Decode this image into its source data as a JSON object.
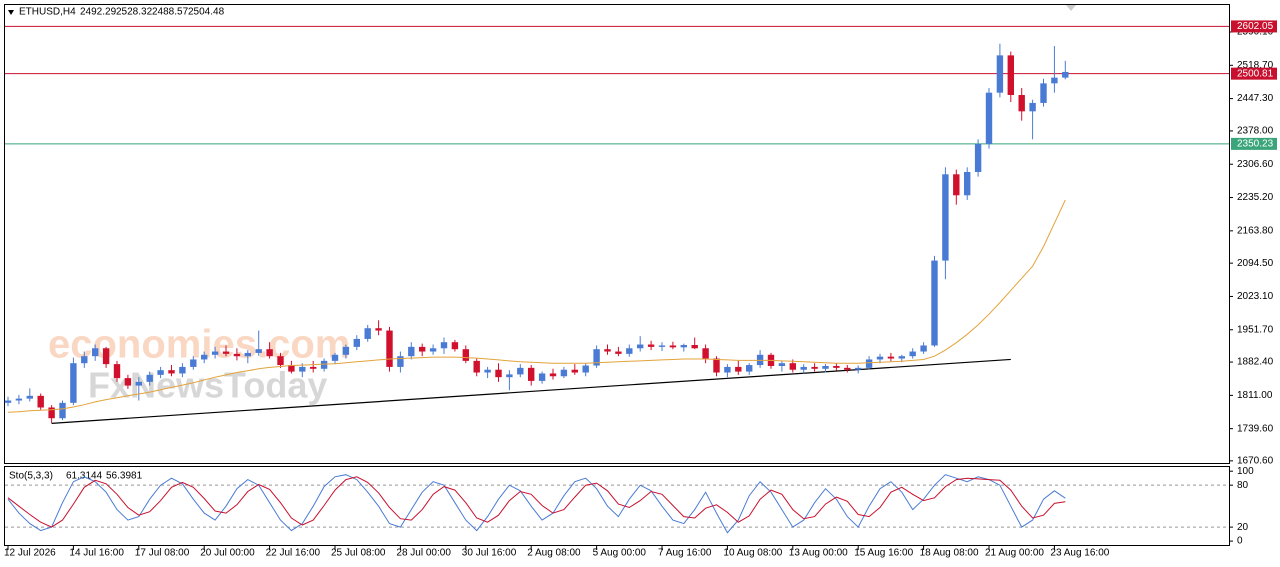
{
  "chart_data": [
    {
      "type": "candlestick",
      "title": "ETHUSD,H4",
      "watermark": [
        "economies.com",
        "FxNewsToday"
      ],
      "categories": [
        "12 Jul 2026",
        null,
        null,
        null,
        null,
        null,
        "14 Jul 16:00",
        null,
        null,
        null,
        null,
        null,
        "17 Jul 08:00",
        null,
        null,
        null,
        null,
        null,
        "20 Jul 00:00",
        null,
        null,
        null,
        null,
        null,
        "22 Jul 16:00",
        null,
        null,
        null,
        null,
        null,
        "25 Jul 08:00",
        null,
        null,
        null,
        null,
        null,
        "28 Jul 00:00",
        null,
        null,
        null,
        null,
        null,
        "30 Jul 16:00",
        null,
        null,
        null,
        null,
        null,
        "2 Aug 08:00",
        null,
        null,
        null,
        null,
        null,
        "5 Aug 00:00",
        null,
        null,
        null,
        null,
        null,
        "7 Aug 16:00",
        null,
        null,
        null,
        null,
        null,
        "10 Aug 08:00",
        null,
        null,
        null,
        null,
        null,
        "13 Aug 00:00",
        null,
        null,
        null,
        null,
        null,
        "15 Aug 16:00",
        null,
        null,
        null,
        null,
        null,
        "18 Aug 08:00",
        null,
        null,
        null,
        null,
        null,
        "21 Aug 00:00",
        null,
        null,
        null,
        null,
        null,
        "23 Aug 16:00",
        null
      ],
      "open": [
        1795,
        1800,
        1804,
        1810,
        1785,
        1762,
        1795,
        1880,
        1895,
        1912,
        1878,
        1848,
        1832,
        1840,
        1855,
        1865,
        1858,
        1872,
        1888,
        1898,
        1905,
        1900,
        1895,
        1902,
        1910,
        1895,
        1876,
        1862,
        1872,
        1868,
        1885,
        1898,
        1915,
        1932,
        1955,
        1950,
        1872,
        1895,
        1915,
        1905,
        1912,
        1925,
        1910,
        1885,
        1860,
        1866,
        1850,
        1856,
        1870,
        1842,
        1858,
        1852,
        1866,
        1860,
        1875,
        1910,
        1905,
        1900,
        1912,
        1920,
        1915,
        1918,
        1914,
        1919,
        1912,
        1890,
        1860,
        1872,
        1862,
        1876,
        1898,
        1874,
        1880,
        1866,
        1872,
        1868,
        1874,
        1870,
        1866,
        1870,
        1888,
        1894,
        1890,
        1895,
        1905,
        1918,
        2100,
        2285,
        2240,
        2290,
        2350,
        2460,
        2540,
        2455,
        2420,
        2438,
        2480,
        2492.29
      ],
      "high": [
        1808,
        1812,
        1826,
        1815,
        1790,
        1800,
        1892,
        1905,
        1920,
        1915,
        1885,
        1855,
        1850,
        1862,
        1872,
        1876,
        1880,
        1895,
        1905,
        1915,
        1918,
        1912,
        1908,
        1950,
        1925,
        1902,
        1885,
        1880,
        1885,
        1890,
        1902,
        1920,
        1940,
        1962,
        1972,
        1958,
        1905,
        1925,
        1922,
        1920,
        1935,
        1930,
        1918,
        1890,
        1872,
        1880,
        1865,
        1878,
        1876,
        1862,
        1868,
        1872,
        1878,
        1880,
        1918,
        1920,
        1915,
        1920,
        1938,
        1928,
        1925,
        1926,
        1922,
        1935,
        1920,
        1895,
        1878,
        1885,
        1880,
        1908,
        1902,
        1885,
        1888,
        1878,
        1880,
        1878,
        1880,
        1876,
        1875,
        1895,
        1900,
        1902,
        1898,
        1912,
        1925,
        2110,
        2300,
        2295,
        2300,
        2360,
        2470,
        2565,
        2548,
        2470,
        2445,
        2490,
        2560,
        2528.32
      ],
      "low": [
        1788,
        1792,
        1798,
        1780,
        1752,
        1758,
        1790,
        1870,
        1885,
        1870,
        1840,
        1825,
        1800,
        1832,
        1848,
        1852,
        1850,
        1866,
        1880,
        1890,
        1895,
        1886,
        1880,
        1896,
        1890,
        1870,
        1858,
        1850,
        1860,
        1862,
        1878,
        1890,
        1908,
        1926,
        1940,
        1862,
        1860,
        1888,
        1895,
        1898,
        1900,
        1905,
        1880,
        1852,
        1848,
        1840,
        1822,
        1850,
        1832,
        1836,
        1845,
        1848,
        1855,
        1852,
        1870,
        1898,
        1895,
        1894,
        1905,
        1908,
        1906,
        1910,
        1905,
        1910,
        1880,
        1852,
        1850,
        1855,
        1855,
        1870,
        1868,
        1862,
        1860,
        1858,
        1862,
        1860,
        1864,
        1860,
        1858,
        1866,
        1880,
        1884,
        1882,
        1890,
        1900,
        1915,
        2060,
        2220,
        2230,
        2280,
        2340,
        2450,
        2440,
        2400,
        2360,
        2430,
        2460,
        2488.57
      ],
      "close": [
        1800,
        1804,
        1810,
        1785,
        1762,
        1795,
        1880,
        1895,
        1912,
        1878,
        1848,
        1832,
        1840,
        1855,
        1865,
        1858,
        1872,
        1888,
        1898,
        1905,
        1900,
        1895,
        1902,
        1910,
        1895,
        1876,
        1862,
        1872,
        1868,
        1885,
        1898,
        1915,
        1932,
        1955,
        1950,
        1872,
        1895,
        1915,
        1905,
        1912,
        1925,
        1910,
        1885,
        1860,
        1866,
        1850,
        1856,
        1870,
        1842,
        1858,
        1852,
        1866,
        1860,
        1875,
        1910,
        1905,
        1900,
        1912,
        1920,
        1915,
        1918,
        1914,
        1919,
        1912,
        1890,
        1860,
        1872,
        1862,
        1876,
        1898,
        1874,
        1880,
        1866,
        1872,
        1868,
        1874,
        1870,
        1866,
        1870,
        1888,
        1894,
        1890,
        1895,
        1905,
        1918,
        2100,
        2285,
        2240,
        2290,
        2350,
        2460,
        2540,
        2455,
        2420,
        2438,
        2480,
        2492.29,
        2504.48
      ],
      "up_color": "#4a7bd4",
      "down_color": "#d0102c",
      "ma": {
        "color": "#e3a33b",
        "values": [
          1775,
          1776,
          1778,
          1779,
          1780,
          1782,
          1786,
          1791,
          1797,
          1802,
          1806,
          1810,
          1814,
          1818,
          1823,
          1828,
          1833,
          1838,
          1844,
          1850,
          1855,
          1860,
          1864,
          1868,
          1871,
          1873,
          1875,
          1876,
          1877,
          1878,
          1879,
          1881,
          1883,
          1885,
          1887,
          1889,
          1890,
          1891,
          1892,
          1893,
          1893,
          1893,
          1892,
          1891,
          1889,
          1887,
          1885,
          1883,
          1882,
          1881,
          1880,
          1880,
          1880,
          1880,
          1881,
          1882,
          1883,
          1884,
          1885,
          1886,
          1887,
          1888,
          1889,
          1889,
          1889,
          1888,
          1887,
          1886,
          1886,
          1886,
          1886,
          1885,
          1884,
          1883,
          1882,
          1881,
          1880,
          1880,
          1880,
          1881,
          1882,
          1883,
          1884,
          1886,
          1888,
          1895,
          1908,
          1924,
          1942,
          1962,
          1985,
          2010,
          2036,
          2062,
          2088,
          2130,
          2180,
          2230
        ]
      },
      "hlines": [
        {
          "value": 2602.05,
          "color": "#c8102e"
        },
        {
          "value": 2500.81,
          "color": "#c8102e"
        },
        {
          "value": 2350.23,
          "color": "#3aa57a"
        }
      ],
      "trendline": {
        "x": [
          4,
          92
        ],
        "y": [
          1751,
          1888
        ]
      },
      "ylim": [
        1666,
        2648
      ],
      "yticks": [
        {
          "value": 2590.1,
          "label": "2590.10"
        },
        {
          "value": 2518.7,
          "label": "2518.70"
        },
        {
          "value": 2447.3,
          "label": "2447.30"
        },
        {
          "value": 2378,
          "label": "2378.00"
        },
        {
          "value": 2306.6,
          "label": "2306.60"
        },
        {
          "value": 2235.2,
          "label": "2235.20"
        },
        {
          "value": 2163.8,
          "label": "2163.80"
        },
        {
          "value": 2094.5,
          "label": "2094.50"
        },
        {
          "value": 2023.1,
          "label": "2023.10"
        },
        {
          "value": 1951.7,
          "label": "1951.70"
        },
        {
          "value": 1882.4,
          "label": "1882.40"
        },
        {
          "value": 1811,
          "label": "1811.00"
        },
        {
          "value": 1739.6,
          "label": "1739.60"
        },
        {
          "value": 1670.6,
          "label": "1670.60"
        }
      ]
    },
    {
      "type": "line",
      "title": "Sto(5,3,3)",
      "series": [
        {
          "color": "#4a7bd4",
          "values": [
            60,
            40,
            25,
            15,
            20,
            55,
            85,
            92,
            85,
            70,
            45,
            30,
            35,
            60,
            80,
            90,
            82,
            60,
            40,
            30,
            50,
            75,
            88,
            80,
            55,
            30,
            15,
            25,
            50,
            78,
            92,
            95,
            88,
            70,
            50,
            25,
            20,
            45,
            70,
            85,
            80,
            55,
            30,
            15,
            35,
            60,
            80,
            72,
            50,
            30,
            40,
            65,
            85,
            90,
            75,
            50,
            35,
            60,
            80,
            72,
            50,
            30,
            25,
            45,
            70,
            40,
            12,
            30,
            65,
            85,
            70,
            45,
            20,
            30,
            55,
            75,
            60,
            35,
            20,
            50,
            75,
            85,
            70,
            45,
            60,
            80,
            95,
            90,
            85,
            92,
            88,
            80,
            50,
            20,
            30,
            60,
            72,
            61.3144
          ]
        },
        {
          "color": "#c8102e",
          "values": [
            62,
            50,
            38,
            27,
            20,
            30,
            53,
            77,
            87,
            82,
            67,
            48,
            37,
            42,
            58,
            77,
            84,
            77,
            61,
            43,
            40,
            52,
            71,
            81,
            74,
            55,
            33,
            23,
            30,
            51,
            73,
            88,
            92,
            84,
            69,
            48,
            32,
            30,
            45,
            67,
            78,
            73,
            55,
            33,
            27,
            37,
            58,
            71,
            67,
            51,
            40,
            45,
            63,
            80,
            83,
            72,
            53,
            48,
            58,
            71,
            67,
            51,
            35,
            33,
            47,
            52,
            41,
            27,
            36,
            60,
            73,
            67,
            45,
            32,
            35,
            53,
            63,
            57,
            38,
            35,
            48,
            70,
            77,
            67,
            58,
            62,
            78,
            88,
            90,
            89,
            88,
            87,
            73,
            50,
            33,
            37,
            54,
            56.3981
          ]
        }
      ],
      "levels": [
        80,
        20
      ],
      "ylim": [
        -7,
        106
      ],
      "yticks": [
        100,
        80,
        20,
        0
      ]
    }
  ]
}
